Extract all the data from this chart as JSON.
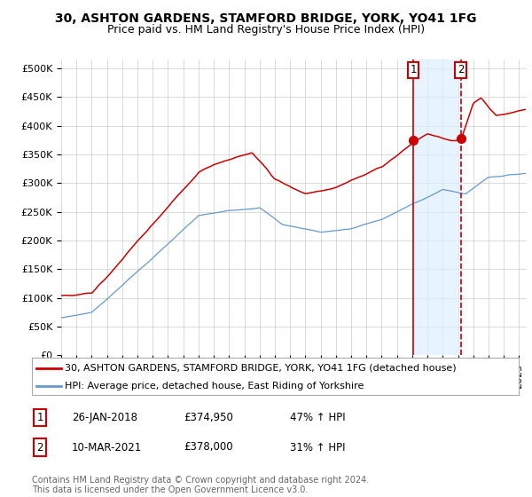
{
  "title": "30, ASHTON GARDENS, STAMFORD BRIDGE, YORK, YO41 1FG",
  "subtitle": "Price paid vs. HM Land Registry's House Price Index (HPI)",
  "ylabel_ticks": [
    "£0",
    "£50K",
    "£100K",
    "£150K",
    "£200K",
    "£250K",
    "£300K",
    "£350K",
    "£400K",
    "£450K",
    "£500K"
  ],
  "ytick_vals": [
    0,
    50000,
    100000,
    150000,
    200000,
    250000,
    300000,
    350000,
    400000,
    450000,
    500000
  ],
  "ylim": [
    0,
    515000
  ],
  "xlim_start": 1995.0,
  "xlim_end": 2025.5,
  "hpi_color": "#6699cc",
  "price_color": "#cc0000",
  "background_color": "#ffffff",
  "grid_color": "#cccccc",
  "sale1_x": 2018.07,
  "sale1_y": 374950,
  "sale2_x": 2021.19,
  "sale2_y": 378000,
  "sale1_label": "26-JAN-2018",
  "sale1_price": "£374,950",
  "sale1_hpi": "47% ↑ HPI",
  "sale2_label": "10-MAR-2021",
  "sale2_price": "£378,000",
  "sale2_hpi": "31% ↑ HPI",
  "legend_line1": "30, ASHTON GARDENS, STAMFORD BRIDGE, YORK, YO41 1FG (detached house)",
  "legend_line2": "HPI: Average price, detached house, East Riding of Yorkshire",
  "footer": "Contains HM Land Registry data © Crown copyright and database right 2024.\nThis data is licensed under the Open Government Licence v3.0.",
  "title_fontsize": 10,
  "subtitle_fontsize": 9,
  "tick_fontsize": 8,
  "legend_fontsize": 8,
  "footer_fontsize": 7
}
